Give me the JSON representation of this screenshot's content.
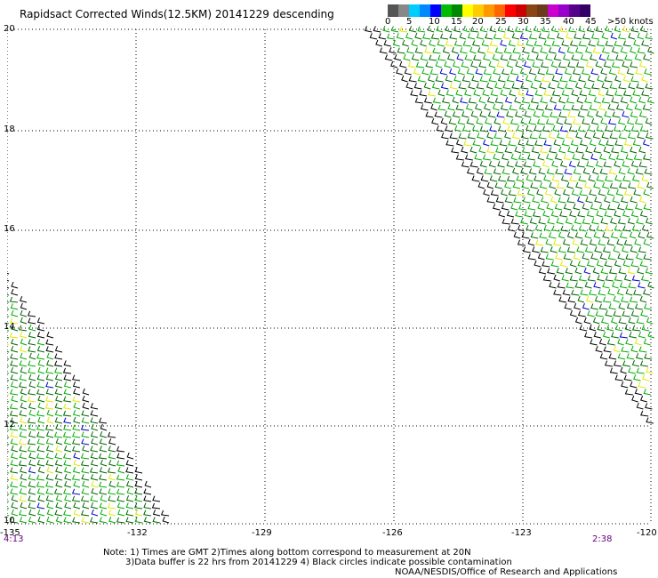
{
  "title": "Rapidsact Corrected Winds(12.5KM) 20141229 descending",
  "colorbar": {
    "colors": [
      "#555555",
      "#888888",
      "#00ccff",
      "#0088ff",
      "#0000ff",
      "#00bb00",
      "#008800",
      "#ffff00",
      "#ffcc00",
      "#ff9900",
      "#ff6600",
      "#ff0000",
      "#cc0000",
      "#8b4513",
      "#6b3a1a",
      "#cc00cc",
      "#9900cc",
      "#550088",
      "#330066"
    ],
    "labels": [
      "0",
      "5",
      "10",
      "15",
      "20",
      "25",
      "30",
      "35",
      "40",
      "45",
      ">50 knots"
    ]
  },
  "axes": {
    "y_labels": [
      "20",
      "18",
      "16",
      "14",
      "12",
      "10"
    ],
    "x_labels": [
      "-135",
      "-132",
      "-129",
      "-126",
      "-123",
      "-120"
    ]
  },
  "times": {
    "left": "4:13",
    "right": "2:38"
  },
  "notes": [
    "Note: 1) Times are GMT 2)Times along bottom correspond to measurement at 20N",
    "3)Data buffer is 22 hrs from 20141229 4) Black circles indicate possible contamination",
    "NOAA/NESDIS/Office of Research and Applications"
  ]
}
